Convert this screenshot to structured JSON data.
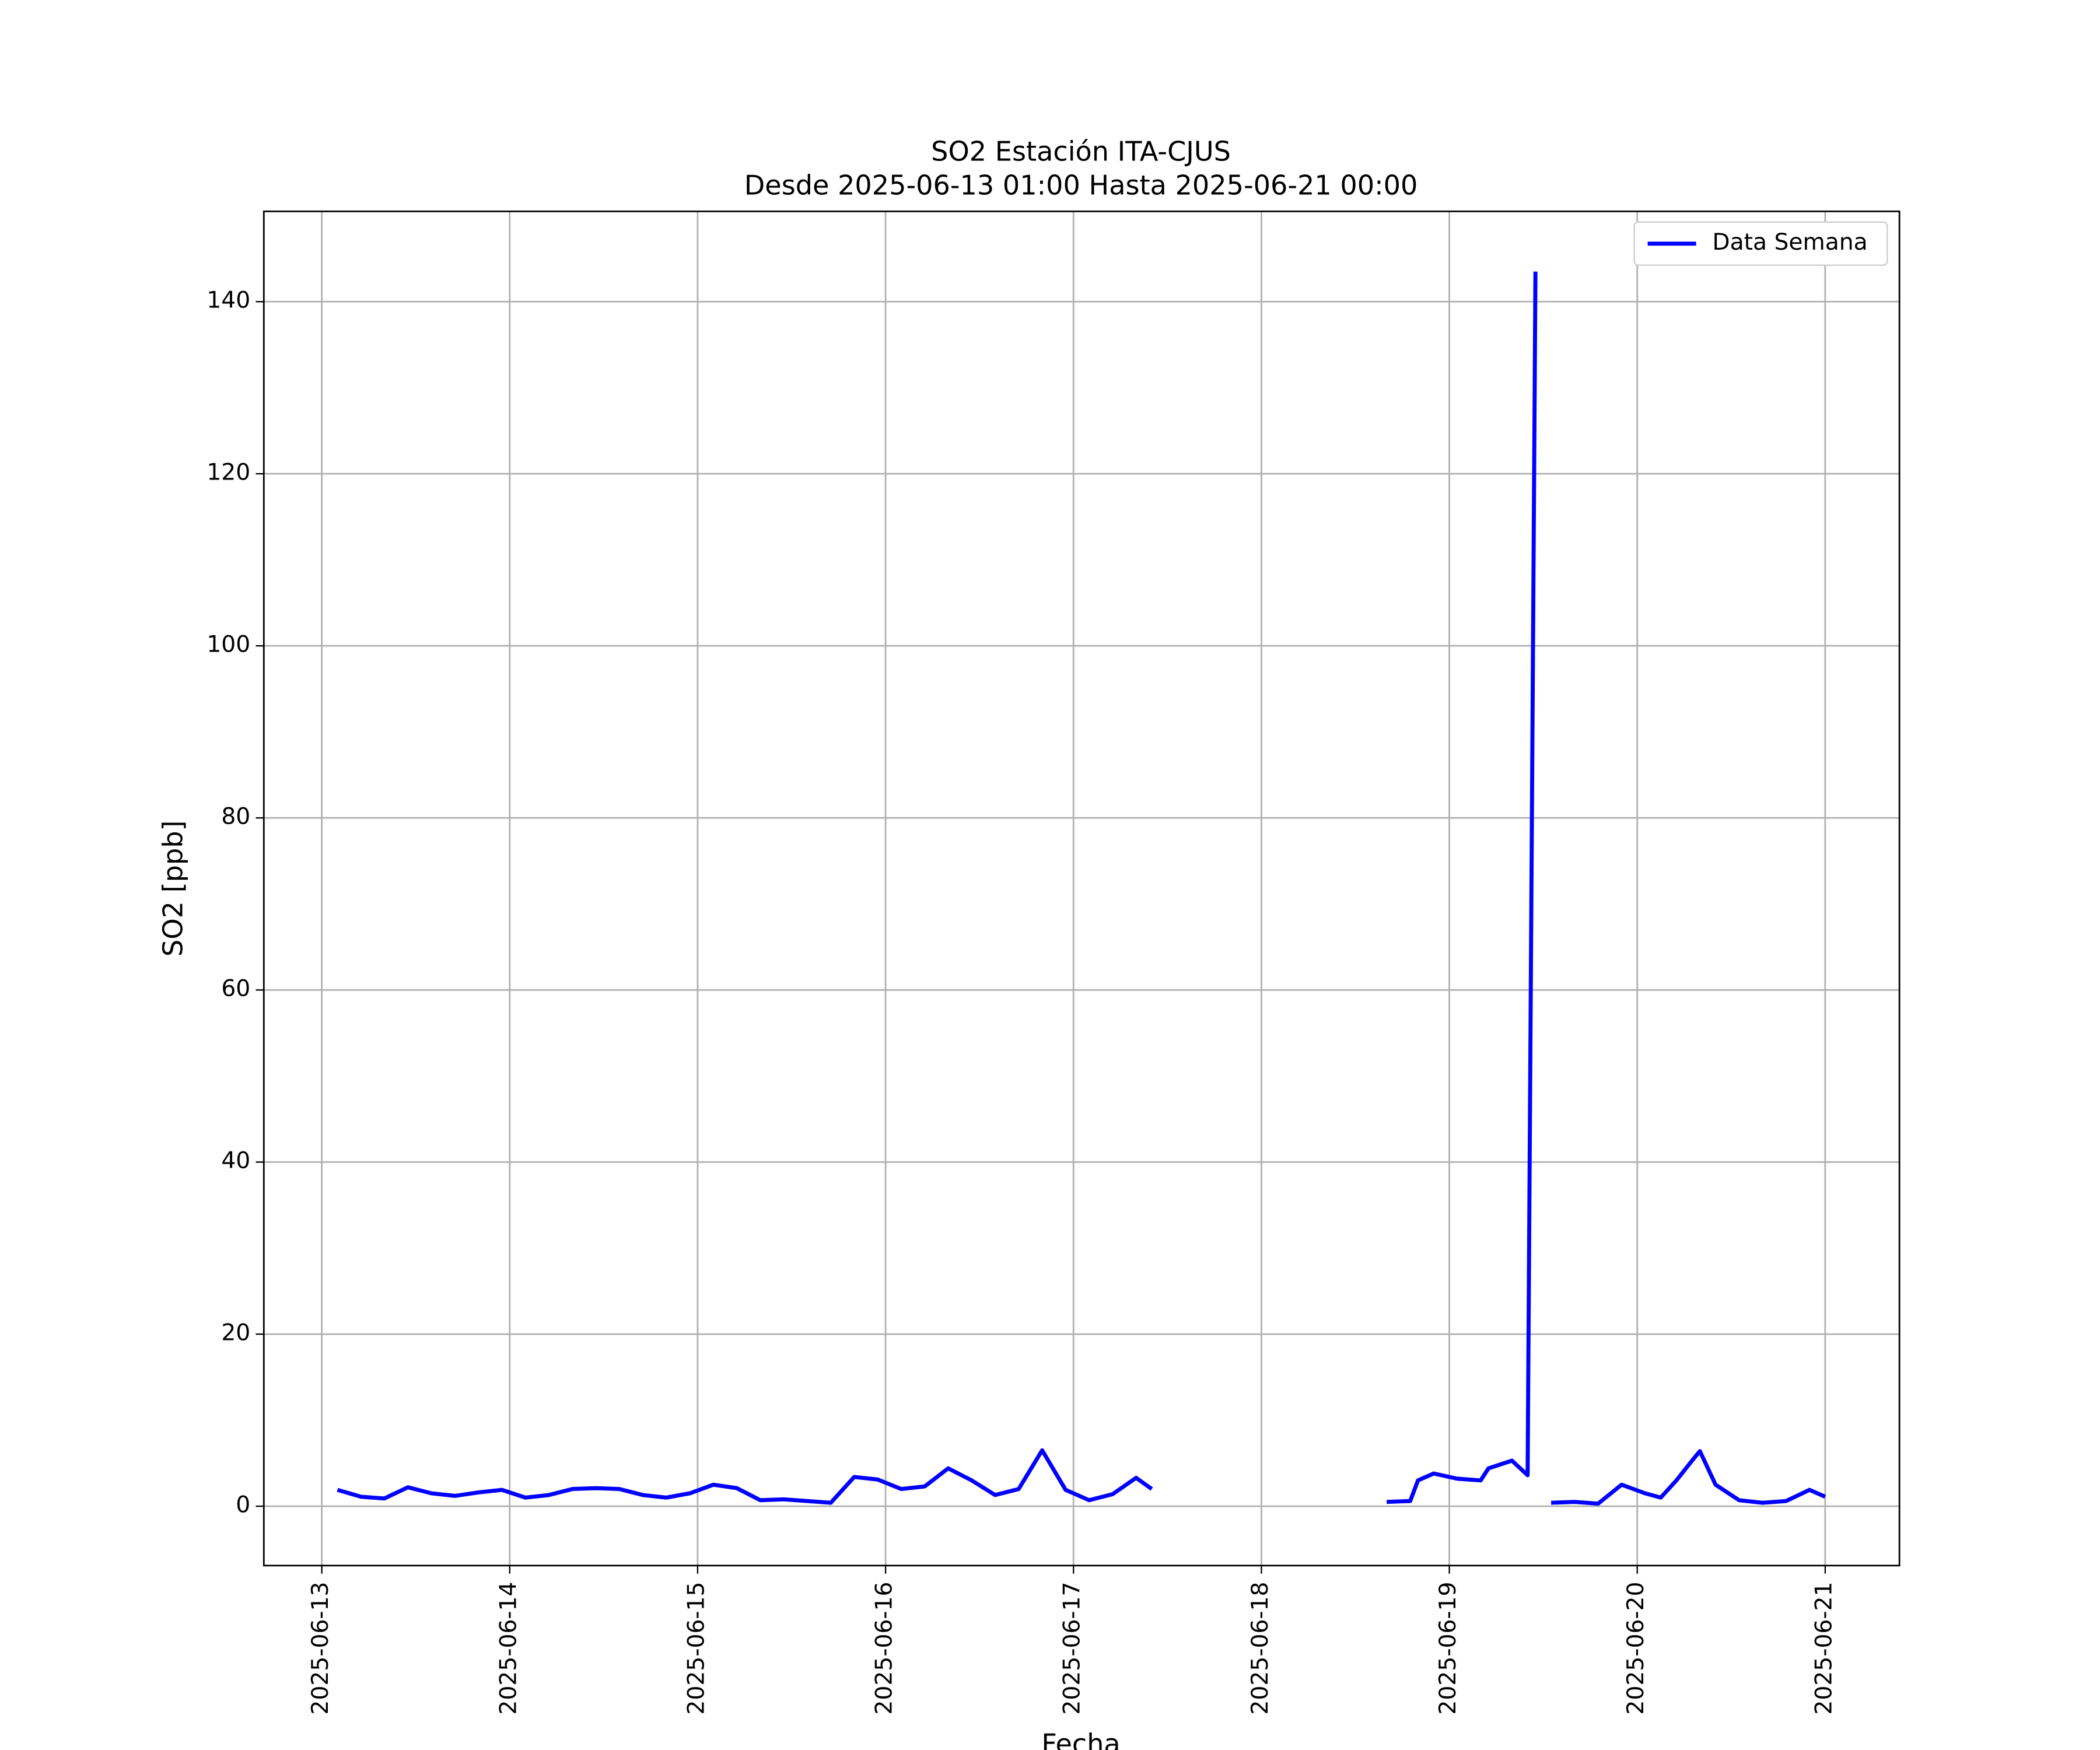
{
  "chart_data": {
    "type": "line",
    "title": "SO2 Estación ITA-CJUS",
    "subtitle": "Desde 2025-06-13 01:00 Hasta 2025-06-21 00:00",
    "x_label": "Fecha",
    "y_label": "SO2 [ppb]",
    "x": [
      "2025-06-13 02:00",
      "2025-06-13 05:00",
      "2025-06-13 08:00",
      "2025-06-13 11:00",
      "2025-06-13 14:00",
      "2025-06-13 17:00",
      "2025-06-13 20:00",
      "2025-06-13 23:00",
      "2025-06-14 02:00",
      "2025-06-14 05:00",
      "2025-06-14 08:00",
      "2025-06-14 11:00",
      "2025-06-14 14:00",
      "2025-06-14 17:00",
      "2025-06-14 20:00",
      "2025-06-14 23:00",
      "2025-06-15 02:00",
      "2025-06-15 05:00",
      "2025-06-15 08:00",
      "2025-06-15 11:00",
      "2025-06-15 14:00",
      "2025-06-15 17:00",
      "2025-06-15 20:00",
      "2025-06-15 23:00",
      "2025-06-16 02:00",
      "2025-06-16 05:00",
      "2025-06-16 08:00",
      "2025-06-16 11:00",
      "2025-06-16 14:00",
      "2025-06-16 17:00",
      "2025-06-16 20:00",
      "2025-06-16 23:00",
      "2025-06-17 02:00",
      "2025-06-17 05:00",
      "2025-06-17 08:00",
      "2025-06-17 10:00",
      "2025-06-17 13:00",
      "2025-06-18 16:00",
      "2025-06-18 19:00",
      "2025-06-18 20:00",
      "2025-06-18 22:00",
      "2025-06-19 01:00",
      "2025-06-19 04:00",
      "2025-06-19 05:00",
      "2025-06-19 08:00",
      "2025-06-19 10:00",
      "2025-06-19 11:00",
      "2025-06-19 12:00",
      "2025-06-19 13:00",
      "2025-06-19 16:00",
      "2025-06-19 19:00",
      "2025-06-19 22:00",
      "2025-06-20 01:00",
      "2025-06-20 03:00",
      "2025-06-20 05:00",
      "2025-06-20 07:00",
      "2025-06-20 08:00",
      "2025-06-20 10:00",
      "2025-06-20 13:00",
      "2025-06-20 16:00",
      "2025-06-20 19:00",
      "2025-06-20 22:00",
      "2025-06-21 00:00"
    ],
    "series": [
      {
        "name": "Data Semana",
        "color": "#0000ff",
        "values": [
          1.9,
          1.1,
          0.9,
          2.2,
          1.5,
          1.2,
          1.6,
          1.9,
          1.0,
          1.3,
          2.0,
          2.1,
          2.0,
          1.3,
          1.0,
          1.5,
          2.5,
          2.1,
          0.7,
          0.8,
          0.6,
          0.4,
          3.4,
          3.1,
          2.0,
          2.3,
          4.4,
          3.0,
          1.3,
          2.0,
          6.5,
          1.9,
          0.7,
          1.4,
          3.3,
          2.0,
          null,
          0.5,
          0.6,
          3.0,
          3.8,
          3.2,
          3.0,
          4.4,
          5.3,
          3.6,
          143.5,
          null,
          0.4,
          0.5,
          0.3,
          2.5,
          1.5,
          1.0,
          3.0,
          5.3,
          6.4,
          2.5,
          0.7,
          0.4,
          0.6,
          1.9,
          1.1
        ]
      }
    ],
    "xlim": [
      "2025-06-12 16:36",
      "2025-06-21 09:29"
    ],
    "xticks": [
      "2025-06-13",
      "2025-06-14",
      "2025-06-15",
      "2025-06-16",
      "2025-06-17",
      "2025-06-18",
      "2025-06-19",
      "2025-06-20",
      "2025-06-21"
    ],
    "ylim": [
      -6.9,
      150.5
    ],
    "yticks": [
      0,
      20,
      40,
      60,
      80,
      100,
      120,
      140
    ],
    "grid": true,
    "legend": "upper right"
  }
}
